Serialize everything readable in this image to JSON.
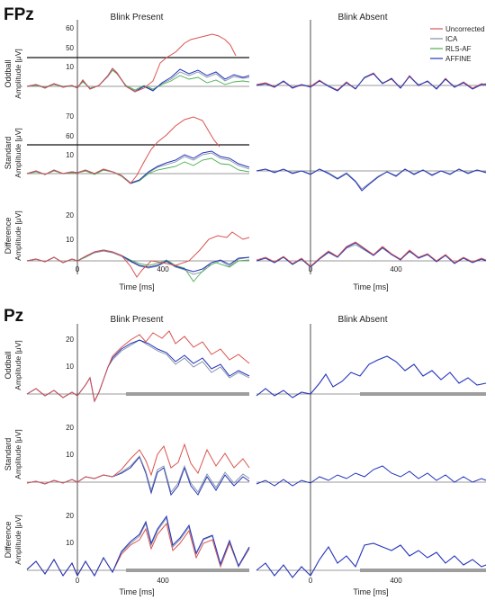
{
  "figure": {
    "section_fpz": "FPz",
    "section_pz": "Pz",
    "col_present": "Blink Present",
    "col_absent": "Blink Absent",
    "xlabel": "Time [ms]",
    "row_fpz": [
      {
        "cond": "Oddball",
        "ylabel": "Amplitude [μV]"
      },
      {
        "cond": "Standard",
        "ylabel": "Amplitude [μV]"
      },
      {
        "cond": "Difference",
        "ylabel": "Amplitude [μV]"
      }
    ],
    "row_pz": [
      {
        "cond": "Oddball",
        "ylabel": "Amplitude [μV]"
      },
      {
        "cond": "Standard",
        "ylabel": "Amplitude [μV]"
      },
      {
        "cond": "Difference",
        "ylabel": "Amplitude [μV]"
      }
    ],
    "legend": [
      "Uncorrected",
      "ICA",
      "RLS-AF",
      "AFFINE"
    ]
  },
  "colors": {
    "Uncorrected": "#d9534f",
    "ICA": "#7f8fa6",
    "RLS-AF": "#4caf50",
    "AFFINE": "#2233bb",
    "sig_bar": "#9e9e9e"
  },
  "chart_data": [
    {
      "type": "line",
      "channel": "FPz",
      "panel": "Oddball – Blink Present",
      "x_ticks": [
        "0",
        "400"
      ],
      "y_ticks": [
        "50",
        "60"
      ],
      "y_ticks_lower": [
        "10"
      ],
      "broken_axis": true,
      "series": [
        {
          "name": "Uncorrected",
          "x": [
            -300,
            -150,
            0,
            100,
            170,
            230,
            300,
            380,
            450,
            500,
            540,
            580,
            620,
            660,
            700,
            750
          ],
          "values": [
            0,
            0,
            1,
            2,
            9,
            3,
            1,
            2,
            25,
            46,
            55,
            58,
            56,
            52,
            45,
            20
          ]
        },
        {
          "name": "AFFINE",
          "x": [
            -300,
            -150,
            0,
            100,
            170,
            230,
            300,
            380,
            450,
            500,
            540,
            580,
            620,
            660,
            700,
            750
          ],
          "values": [
            0,
            0,
            1,
            2,
            9,
            3,
            1,
            2,
            8,
            9,
            10,
            9,
            8,
            9,
            8,
            9
          ]
        }
      ]
    },
    {
      "type": "line",
      "channel": "FPz",
      "panel": "Standard – Blink Present",
      "x_ticks": [
        "0",
        "400"
      ],
      "y_ticks": [
        "60",
        "70"
      ],
      "y_ticks_lower": [
        "10"
      ],
      "broken_axis": true,
      "series": [
        {
          "name": "Uncorrected",
          "x": [
            -300,
            -150,
            0,
            100,
            200,
            300,
            400,
            450,
            500,
            540,
            580,
            620,
            660,
            700,
            750
          ],
          "values": [
            0,
            0,
            1,
            0,
            0,
            2,
            28,
            55,
            68,
            70,
            66,
            60,
            50,
            30,
            8
          ]
        },
        {
          "name": "AFFINE",
          "x": [
            -300,
            -150,
            0,
            100,
            200,
            300,
            400,
            450,
            500,
            540,
            580,
            620,
            660,
            700,
            750
          ],
          "values": [
            0,
            0,
            1,
            0,
            0,
            2,
            5,
            7,
            8,
            9,
            10,
            9,
            8,
            7,
            6
          ]
        }
      ]
    },
    {
      "type": "line",
      "channel": "FPz",
      "panel": "Difference – Blink Present",
      "x_ticks": [
        "0",
        "400"
      ],
      "y_ticks": [
        "10",
        "20"
      ],
      "series": [
        {
          "name": "Uncorrected",
          "x": [
            -300,
            -150,
            0,
            100,
            200,
            300,
            400,
            500,
            600,
            700,
            750
          ],
          "values": [
            0,
            0,
            1,
            3,
            0,
            -10,
            -4,
            -6,
            5,
            12,
            10
          ]
        },
        {
          "name": "AFFINE",
          "x": [
            -300,
            -150,
            0,
            100,
            200,
            300,
            400,
            500,
            600,
            700,
            750
          ],
          "values": [
            0,
            0,
            1,
            3,
            1,
            0,
            -2,
            -3,
            2,
            3,
            1
          ]
        }
      ]
    },
    {
      "type": "line",
      "channel": "Pz",
      "panel": "Oddball – Blink Present",
      "x_ticks": [
        "400"
      ],
      "y_ticks": [
        "10",
        "20"
      ],
      "series": [
        {
          "name": "Uncorrected",
          "x": [
            -300,
            -100,
            0,
            100,
            200,
            300,
            380,
            440,
            500,
            560,
            620,
            700,
            750
          ],
          "values": [
            0,
            0,
            -2,
            9,
            4,
            14,
            19,
            22,
            20,
            16,
            14,
            12,
            10
          ]
        },
        {
          "name": "AFFINE",
          "x": [
            -300,
            -100,
            0,
            100,
            200,
            300,
            380,
            440,
            500,
            560,
            620,
            700,
            750
          ],
          "values": [
            0,
            0,
            -2,
            9,
            4,
            14,
            18,
            17,
            14,
            10,
            8,
            6,
            5
          ]
        }
      ]
    },
    {
      "type": "line",
      "channel": "Pz",
      "panel": "Standard – Blink Present",
      "x_ticks": [
        "400"
      ],
      "y_ticks": [
        "10",
        "20"
      ],
      "series": [
        {
          "name": "Uncorrected",
          "x": [
            -300,
            -100,
            0,
            100,
            200,
            300,
            350,
            400,
            450,
            500,
            550,
            600,
            650,
            700,
            750
          ],
          "values": [
            0,
            0,
            0,
            1,
            2,
            3,
            10,
            1,
            12,
            2,
            10,
            1,
            9,
            3,
            6
          ]
        },
        {
          "name": "AFFINE",
          "x": [
            -300,
            -100,
            0,
            100,
            200,
            300,
            350,
            400,
            450,
            500,
            550,
            600,
            650,
            700,
            750
          ],
          "values": [
            0,
            0,
            0,
            1,
            2,
            3,
            8,
            -1,
            7,
            -2,
            5,
            -2,
            4,
            -1,
            3
          ]
        }
      ]
    },
    {
      "type": "line",
      "channel": "Pz",
      "panel": "Difference – Blink Present",
      "x_ticks": [
        "0",
        "400"
      ],
      "y_ticks": [
        "10",
        "20"
      ],
      "series": [
        {
          "name": "Uncorrected",
          "x": [
            -300,
            -100,
            0,
            100,
            200,
            300,
            350,
            400,
            450,
            500,
            550,
            600,
            650,
            700,
            750
          ],
          "values": [
            0,
            2,
            -2,
            4,
            0,
            6,
            12,
            2,
            14,
            3,
            9,
            0,
            6,
            0,
            6
          ]
        },
        {
          "name": "AFFINE",
          "x": [
            -300,
            -100,
            0,
            100,
            200,
            300,
            350,
            400,
            450,
            500,
            550,
            600,
            650,
            700,
            750
          ],
          "values": [
            0,
            2,
            -2,
            4,
            0,
            6,
            14,
            4,
            17,
            5,
            10,
            1,
            7,
            0,
            6
          ]
        }
      ]
    }
  ]
}
